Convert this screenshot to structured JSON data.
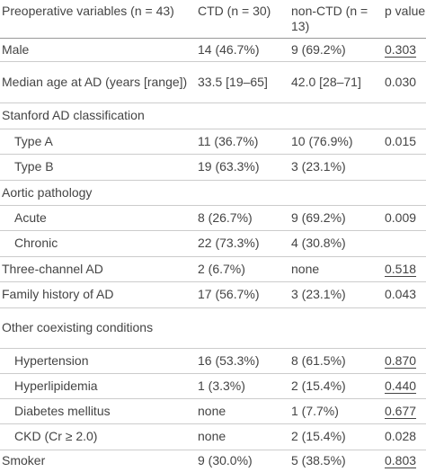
{
  "table": {
    "header": [
      "Preoperative variables (n = 43)",
      "CTD (n = 30)",
      "non-CTD (n = 13)",
      "p value"
    ],
    "rows": [
      [
        "Male",
        "14 (46.7%)",
        "9 (69.2%)",
        "0.303"
      ],
      [
        "Median age at AD (years [range])",
        "33.5 [19–65]",
        "42.0 [28–71]",
        "0.030"
      ],
      [
        "Stanford AD classification"
      ],
      [
        "Type A",
        "11 (36.7%)",
        "10 (76.9%)",
        "0.015"
      ],
      [
        "Type B",
        "19 (63.3%)",
        "3 (23.1%)"
      ],
      [
        "Aortic pathology"
      ],
      [
        "Acute",
        "8 (26.7%)",
        "9 (69.2%)",
        "0.009"
      ],
      [
        "Chronic",
        "22 (73.3%)",
        "4 (30.8%)"
      ],
      [
        "Three-channel AD",
        "2 (6.7%)",
        "none",
        "0.518"
      ],
      [
        "Family history of AD",
        "17 (56.7%)",
        "3 (23.1%)",
        "0.043"
      ],
      [
        "Other coexisting conditions"
      ],
      [
        "Hypertension",
        "16 (53.3%)",
        "8 (61.5%)",
        "0.870"
      ],
      [
        "Hyperlipidemia",
        "1 (3.3%)",
        "2 (15.4%)",
        "0.440"
      ],
      [
        "Diabetes mellitus",
        "none",
        "1 (7.7%)",
        "0.677"
      ],
      [
        "CKD (Cr ≥ 2.0)",
        "none",
        "2 (15.4%)",
        "0.028"
      ],
      [
        "Smoker",
        "9 (30.0%)",
        "5 (38.5%)",
        "0.803"
      ]
    ]
  }
}
